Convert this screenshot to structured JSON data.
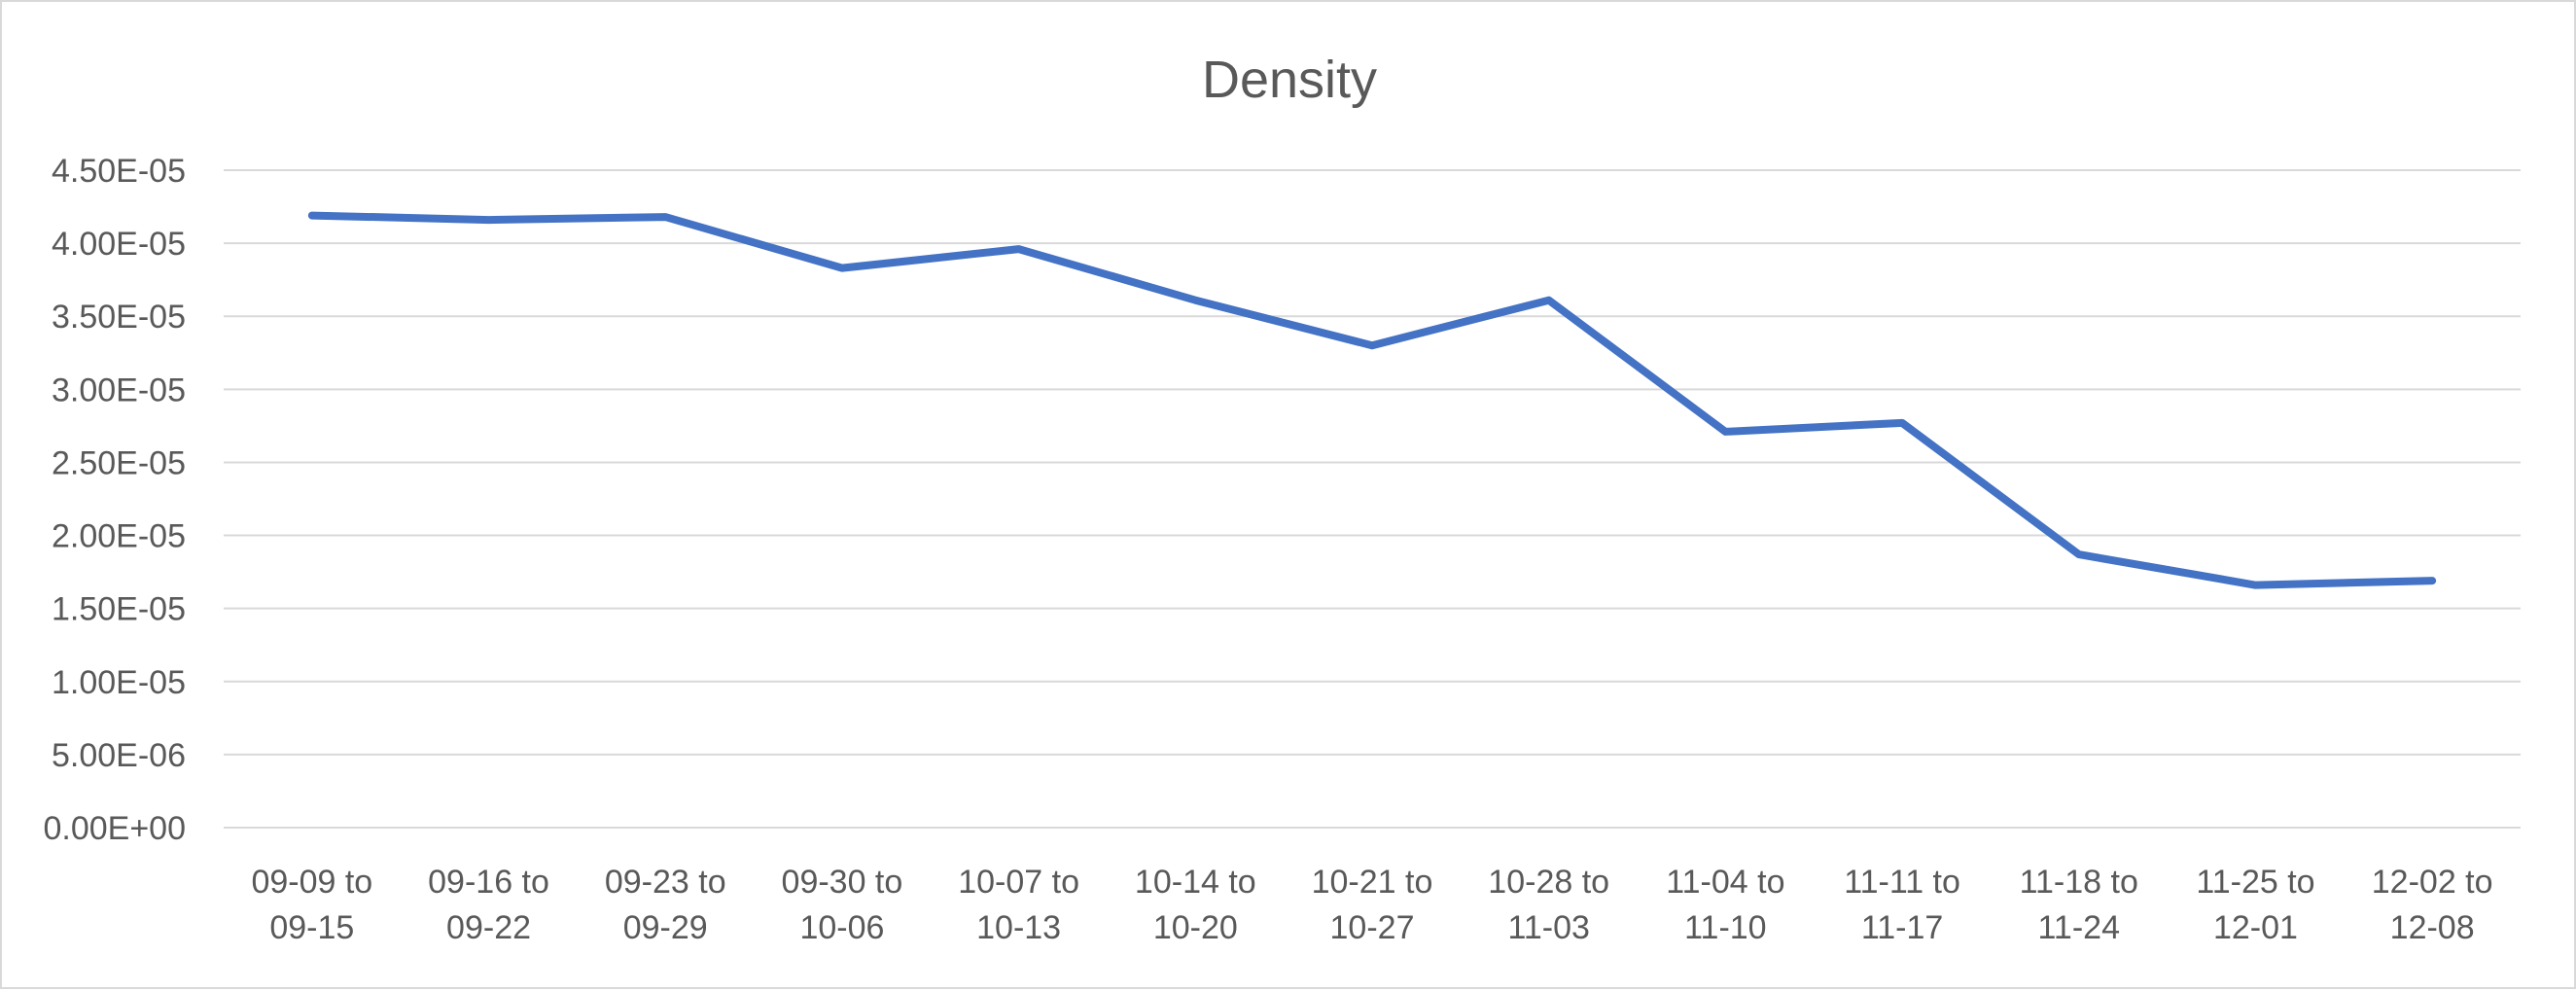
{
  "chart_data": {
    "type": "line",
    "title": "Density",
    "xlabel": "",
    "ylabel": "",
    "categories": [
      [
        "09-09 to",
        "09-15"
      ],
      [
        "09-16 to",
        "09-22"
      ],
      [
        "09-23 to",
        "09-29"
      ],
      [
        "09-30 to",
        "10-06"
      ],
      [
        "10-07 to",
        "10-13"
      ],
      [
        "10-14 to",
        "10-20"
      ],
      [
        "10-21 to",
        "10-27"
      ],
      [
        "10-28 to",
        "11-03"
      ],
      [
        "11-04 to",
        "11-10"
      ],
      [
        "11-11 to",
        "11-17"
      ],
      [
        "11-18 to",
        "11-24"
      ],
      [
        "11-25 to",
        "12-01"
      ],
      [
        "12-02 to",
        "12-08"
      ]
    ],
    "series": [
      {
        "values": [
          4.19e-05,
          4.16e-05,
          4.18e-05,
          3.83e-05,
          3.96e-05,
          3.61e-05,
          3.3e-05,
          3.61e-05,
          2.71e-05,
          2.77e-05,
          1.87e-05,
          1.66e-05,
          1.69e-05
        ],
        "color": "#4472c4"
      }
    ],
    "ylim": [
      0,
      4.5e-05
    ],
    "yticks": [
      "0.00E+00",
      "5.00E-06",
      "1.00E-05",
      "1.50E-05",
      "2.00E-05",
      "2.50E-05",
      "3.00E-05",
      "3.50E-05",
      "4.00E-05",
      "4.50E-05"
    ],
    "grid": true,
    "legend": "none"
  }
}
